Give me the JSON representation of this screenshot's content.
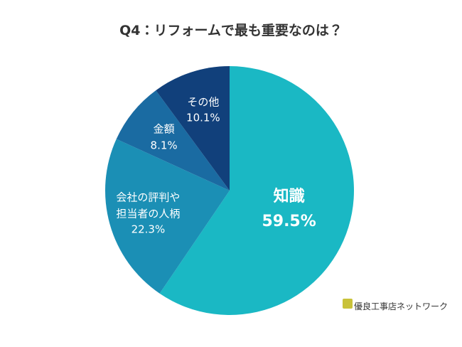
{
  "chart_data": {
    "type": "pie",
    "title": "Q4：リフォームで最も重要なのは？",
    "categories": [
      "知識",
      "会社の評判や\n担当者の人柄",
      "金額",
      "その他"
    ],
    "values": [
      59.5,
      22.3,
      8.1,
      10.1
    ],
    "value_labels": [
      "59.5%",
      "22.3%",
      "8.1%",
      "10.1%"
    ],
    "colors": [
      "#1ab8c4",
      "#1b8fb5",
      "#1a6ba2",
      "#11407b"
    ],
    "logo": "優良工事店ネットワーク"
  }
}
